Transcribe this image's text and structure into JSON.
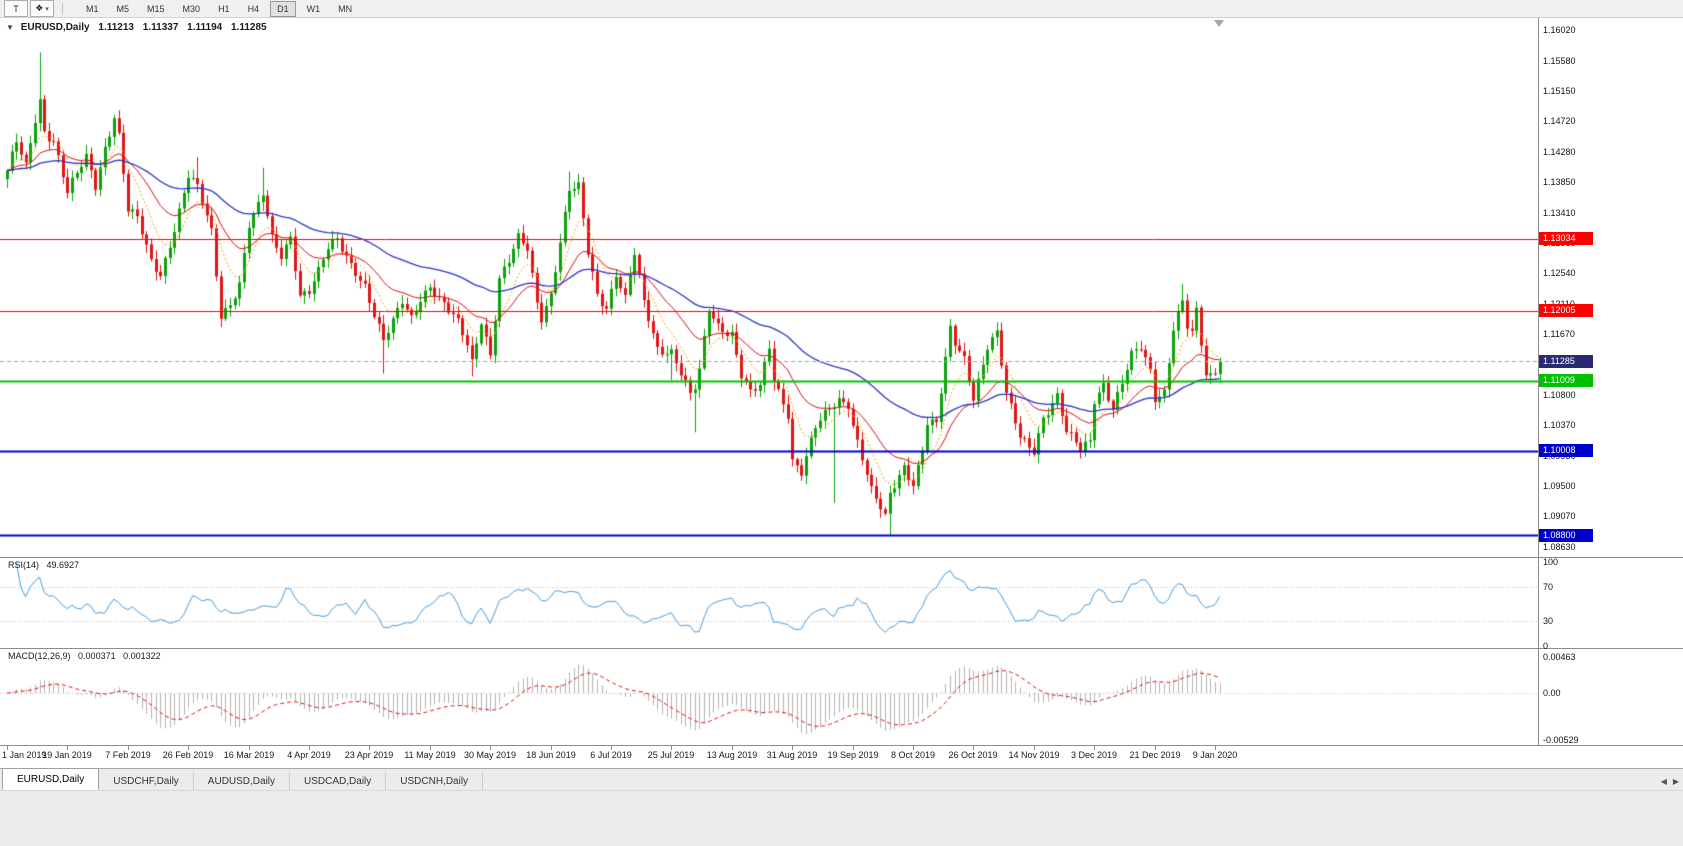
{
  "ui": {
    "toolbar": {
      "pointer_label": "T",
      "objects_icon": "❖",
      "caret_icon": "▾",
      "timeframes": [
        "M1",
        "M5",
        "M15",
        "M30",
        "H1",
        "H4",
        "D1",
        "W1",
        "MN"
      ],
      "active_timeframe": "D1"
    },
    "chart_header": {
      "dropdown_icon": "▼"
    },
    "tabs": {
      "items": [
        "EURUSD,Daily",
        "USDCHF,Daily",
        "AUDUSD,Daily",
        "USDCAD,Daily",
        "USDCNH,Daily"
      ],
      "active_index": 0,
      "scroll_left_icon": "◀",
      "scroll_right_icon": "▶"
    }
  },
  "chart_data": {
    "type": "candlestick",
    "title": "EURUSD,Daily",
    "symbol": "EURUSD",
    "timeframe": "Daily",
    "ohlc_display": {
      "open": "1.11213",
      "high": "1.11337",
      "low": "1.11194",
      "close": "1.11285"
    },
    "price_axis": {
      "top": 1.1602,
      "bottom": 1.0863,
      "ticks": [
        "1.16020",
        "1.15580",
        "1.15150",
        "1.14720",
        "1.14280",
        "1.13850",
        "1.13410",
        "1.12980",
        "1.12540",
        "1.12110",
        "1.11670",
        "1.11240",
        "1.10800",
        "1.10370",
        "1.09930",
        "1.09500",
        "1.09070",
        "1.08630"
      ]
    },
    "x_labels": [
      "1 Jan 2019",
      "19 Jan 2019",
      "7 Feb 2019",
      "26 Feb 2019",
      "16 Mar 2019",
      "4 Apr 2019",
      "23 Apr 2019",
      "11 May 2019",
      "30 May 2019",
      "18 Jun 2019",
      "6 Jul 2019",
      "25 Jul 2019",
      "13 Aug 2019",
      "31 Aug 2019",
      "19 Sep 2019",
      "8 Oct 2019",
      "26 Oct 2019",
      "14 Nov 2019",
      "3 Dec 2019",
      "21 Dec 2019",
      "9 Jan 2020"
    ],
    "bars_per_label": 13,
    "bar_count": 262,
    "close_anchors": [
      [
        0,
        1.1395
      ],
      [
        2,
        1.1438
      ],
      [
        4,
        1.1406
      ],
      [
        6,
        1.1478
      ],
      [
        7,
        1.1506
      ],
      [
        8,
        1.1462
      ],
      [
        10,
        1.1446
      ],
      [
        13,
        1.1366
      ],
      [
        15,
        1.1392
      ],
      [
        17,
        1.1418
      ],
      [
        19,
        1.1382
      ],
      [
        21,
        1.1438
      ],
      [
        23,
        1.1482
      ],
      [
        24,
        1.1452
      ],
      [
        26,
        1.1342
      ],
      [
        28,
        1.1328
      ],
      [
        31,
        1.127
      ],
      [
        33,
        1.1256
      ],
      [
        36,
        1.1322
      ],
      [
        39,
        1.1392
      ],
      [
        41,
        1.1372
      ],
      [
        44,
        1.1312
      ],
      [
        46,
        1.1196
      ],
      [
        48,
        1.1216
      ],
      [
        50,
        1.1242
      ],
      [
        52,
        1.1322
      ],
      [
        54,
        1.1345
      ],
      [
        55,
        1.1362
      ],
      [
        57,
        1.1302
      ],
      [
        59,
        1.1282
      ],
      [
        61,
        1.1312
      ],
      [
        63,
        1.1226
      ],
      [
        65,
        1.1228
      ],
      [
        67,
        1.1252
      ],
      [
        69,
        1.1286
      ],
      [
        71,
        1.1302
      ],
      [
        73,
        1.1282
      ],
      [
        75,
        1.1262
      ],
      [
        77,
        1.1238
      ],
      [
        79,
        1.1192
      ],
      [
        81,
        1.1152
      ],
      [
        83,
        1.1182
      ],
      [
        85,
        1.1216
      ],
      [
        87,
        1.1196
      ],
      [
        89,
        1.1222
      ],
      [
        91,
        1.1236
      ],
      [
        93,
        1.1212
      ],
      [
        95,
        1.1196
      ],
      [
        97,
        1.1182
      ],
      [
        99,
        1.1156
      ],
      [
        100,
        1.1132
      ],
      [
        102,
        1.1192
      ],
      [
        104,
        1.1138
      ],
      [
        106,
        1.1242
      ],
      [
        108,
        1.1266
      ],
      [
        110,
        1.1302
      ],
      [
        112,
        1.1292
      ],
      [
        114,
        1.1218
      ],
      [
        115,
        1.1196
      ],
      [
        117,
        1.1226
      ],
      [
        119,
        1.1296
      ],
      [
        121,
        1.1368
      ],
      [
        123,
        1.1374
      ],
      [
        125,
        1.1286
      ],
      [
        127,
        1.1228
      ],
      [
        129,
        1.121
      ],
      [
        131,
        1.1254
      ],
      [
        133,
        1.1214
      ],
      [
        135,
        1.1278
      ],
      [
        137,
        1.121
      ],
      [
        140,
        1.115
      ],
      [
        143,
        1.1146
      ],
      [
        144,
        1.113
      ],
      [
        147,
        1.1076
      ],
      [
        148,
        1.1086
      ],
      [
        149,
        1.111
      ],
      [
        151,
        1.1202
      ],
      [
        153,
        1.1182
      ],
      [
        156,
        1.1172
      ],
      [
        158,
        1.111
      ],
      [
        160,
        1.108
      ],
      [
        162,
        1.1088
      ],
      [
        164,
        1.1146
      ],
      [
        165,
        1.1102
      ],
      [
        168,
        1.1058
      ],
      [
        169,
        1.0992
      ],
      [
        171,
        1.0972
      ],
      [
        174,
        1.103
      ],
      [
        176,
        1.1048
      ],
      [
        178,
        1.1066
      ],
      [
        179,
        1.1074
      ],
      [
        181,
        1.1072
      ],
      [
        182,
        1.1042
      ],
      [
        184,
        1.0994
      ],
      [
        186,
        1.0942
      ],
      [
        189,
        1.09
      ],
      [
        190,
        1.0934
      ],
      [
        193,
        1.098
      ],
      [
        195,
        1.0958
      ],
      [
        197,
        1.1006
      ],
      [
        198,
        1.1042
      ],
      [
        200,
        1.1036
      ],
      [
        203,
        1.117
      ],
      [
        204,
        1.1152
      ],
      [
        206,
        1.1134
      ],
      [
        208,
        1.1082
      ],
      [
        211,
        1.1152
      ],
      [
        213,
        1.1166
      ],
      [
        215,
        1.1076
      ],
      [
        218,
        1.102
      ],
      [
        221,
        1.1006
      ],
      [
        223,
        1.1052
      ],
      [
        226,
        1.1076
      ],
      [
        228,
        1.1022
      ],
      [
        231,
        1.1002
      ],
      [
        233,
        1.1018
      ],
      [
        234,
        1.1078
      ],
      [
        236,
        1.11
      ],
      [
        238,
        1.1062
      ],
      [
        240,
        1.1094
      ],
      [
        242,
        1.1132
      ],
      [
        244,
        1.1146
      ],
      [
        246,
        1.1116
      ],
      [
        247,
        1.108
      ],
      [
        249,
        1.109
      ],
      [
        251,
        1.1178
      ],
      [
        253,
        1.1212
      ],
      [
        254,
        1.1174
      ],
      [
        255,
        1.1162
      ],
      [
        256,
        1.1196
      ],
      [
        258,
        1.1106
      ],
      [
        259,
        1.1108
      ],
      [
        261,
        1.11285
      ]
    ],
    "wick_overrides": [
      [
        7,
        "h",
        1.157
      ],
      [
        41,
        "h",
        1.142
      ],
      [
        46,
        "l",
        1.1177
      ],
      [
        55,
        "h",
        1.1405
      ],
      [
        81,
        "l",
        1.1111
      ],
      [
        100,
        "l",
        1.1107
      ],
      [
        121,
        "h",
        1.14
      ],
      [
        143,
        "l",
        1.1101
      ],
      [
        148,
        "l",
        1.1027
      ],
      [
        178,
        "l",
        1.0926
      ],
      [
        190,
        "l",
        1.0879
      ],
      [
        203,
        "h",
        1.1179
      ],
      [
        253,
        "h",
        1.1239
      ]
    ],
    "levels": [
      {
        "price": 1.13034,
        "label": "1.13034",
        "color": "#ff0000",
        "width": 1
      },
      {
        "price": 1.12005,
        "label": "1.12005",
        "color": "#ff0000",
        "width": 1
      },
      {
        "price": 1.11009,
        "label": "1.11009",
        "color": "#00c100",
        "width": 2
      },
      {
        "price": 1.10008,
        "label": "1.10008",
        "color": "#0000cd",
        "width": 2
      },
      {
        "price": 1.088,
        "label": "1.08800",
        "color": "#0000cd",
        "width": 2
      }
    ],
    "bid_line": {
      "price": 1.11285,
      "label": "1.11285",
      "line_color": "#a8a8a8",
      "badge_color": "#2a2a72"
    },
    "candle_colors": {
      "up": "#0ba30b",
      "down": "#e01616"
    },
    "moving_averages": [
      {
        "type": "ema",
        "period": 8,
        "color": "#f5a623",
        "width": 1,
        "dash": [
          2,
          2
        ]
      },
      {
        "type": "ema",
        "period": 20,
        "color": "#e01010",
        "width": 1,
        "dash": []
      },
      {
        "type": "ema",
        "period": 55,
        "color": "#2b36c8",
        "width": 1.3,
        "dash": []
      }
    ],
    "indicators": {
      "rsi": {
        "label": "RSI(14)",
        "value": "49.6927",
        "period": 14,
        "color": "#4a9ede",
        "level_lines": [
          70,
          30
        ],
        "axis_ticks": [
          {
            "value": 100,
            "label": "100"
          },
          {
            "value": 70,
            "label": "70"
          },
          {
            "value": 30,
            "label": "30"
          },
          {
            "value": 0,
            "label": "0"
          }
        ]
      },
      "macd": {
        "label": "MACD(12,26,9)",
        "value": "0.000371",
        "signal_value": "0.001322",
        "fast": 12,
        "slow": 26,
        "signal": 9,
        "histogram_color": "#b4b4b4",
        "signal_color": "#e01616",
        "axis_ticks": [
          {
            "value": 0.00463,
            "label": "0.00463"
          },
          {
            "value": 0,
            "label": "0.00"
          },
          {
            "value": -0.00529,
            "label": "-0.00529"
          }
        ]
      }
    }
  }
}
